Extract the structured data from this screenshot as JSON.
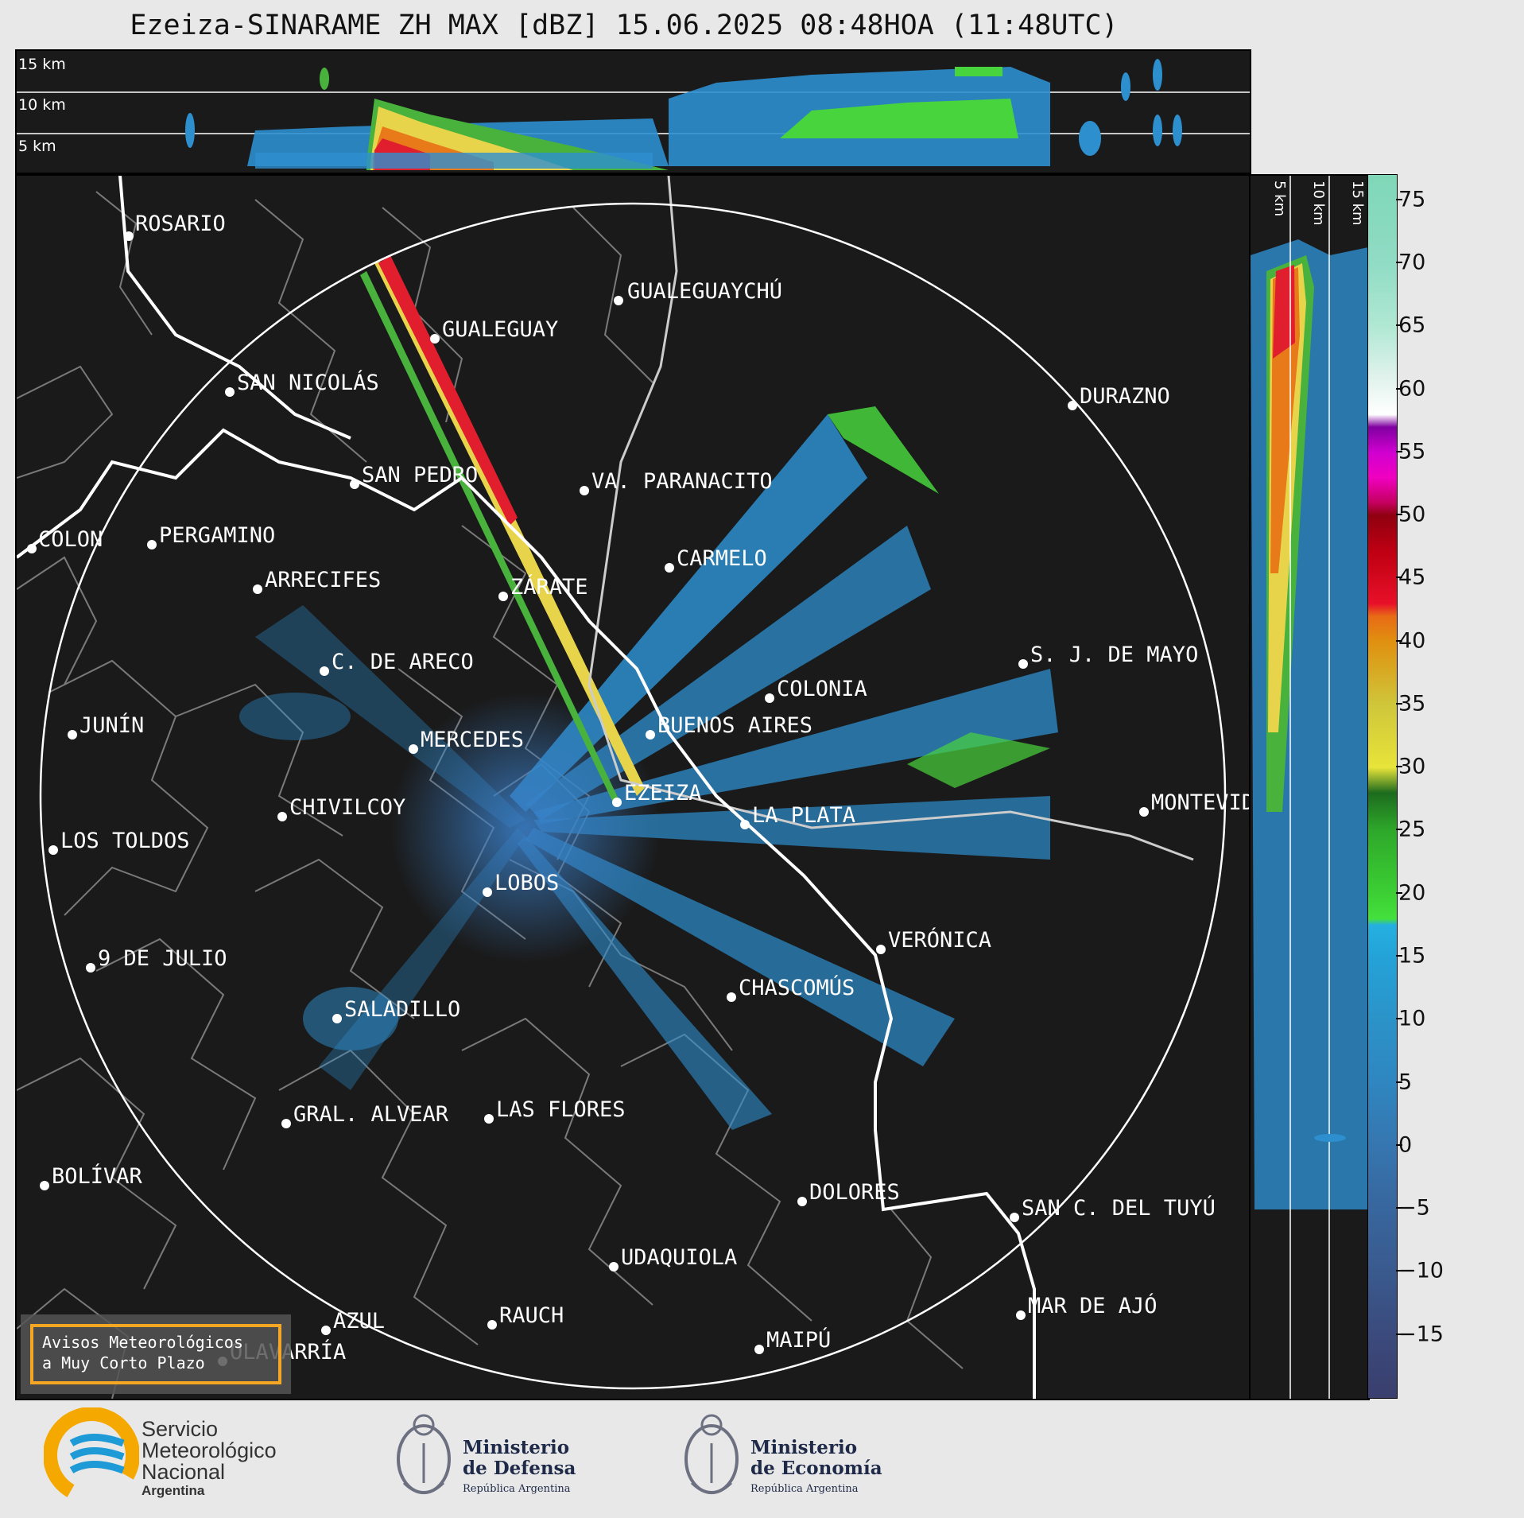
{
  "title": "Ezeiza-SINARAME ZH MAX [dBZ] 15.06.2025 08:48HOA (11:48UTC)",
  "top_panel": {
    "height_labels": [
      "15 km",
      "10 km",
      "5 km"
    ]
  },
  "side_panel": {
    "height_labels": [
      "5 km",
      "10 km",
      "15 km"
    ]
  },
  "colorbar": {
    "unit": "dBZ",
    "tick_labels": [
      "75",
      "70",
      "65",
      "60",
      "55",
      "50",
      "45",
      "40",
      "35",
      "30",
      "25",
      "20",
      "15",
      "10",
      "5",
      "0",
      "−5",
      "−10",
      "−15"
    ],
    "range": [
      -20,
      77
    ]
  },
  "cities": [
    {
      "name": "ROSARIO"
    },
    {
      "name": "GUALEGUAYCHÚ"
    },
    {
      "name": "GUALEGUAY"
    },
    {
      "name": "SAN NICOLÁS"
    },
    {
      "name": "DURAZNO"
    },
    {
      "name": "SAN PEDRO"
    },
    {
      "name": "VA. PARANACITO"
    },
    {
      "name": "COLON"
    },
    {
      "name": "PERGAMINO"
    },
    {
      "name": "CARMELO"
    },
    {
      "name": "ARRECIFES"
    },
    {
      "name": "ZÁRATE"
    },
    {
      "name": "S. J. DE MAYO"
    },
    {
      "name": "C. DE ARECO"
    },
    {
      "name": "COLONIA"
    },
    {
      "name": "JUNÍN"
    },
    {
      "name": "BUENOS AIRES"
    },
    {
      "name": "MERCEDES"
    },
    {
      "name": "EZEIZA"
    },
    {
      "name": "MONTEVIDEO"
    },
    {
      "name": "CHIVILCOY"
    },
    {
      "name": "LA PLATA"
    },
    {
      "name": "LOS TOLDOS"
    },
    {
      "name": "LOBOS"
    },
    {
      "name": "VERÓNICA"
    },
    {
      "name": "9 DE JULIO"
    },
    {
      "name": "CHASCOMÚS"
    },
    {
      "name": "SALADILLO"
    },
    {
      "name": "GRAL. ALVEAR"
    },
    {
      "name": "LAS FLORES"
    },
    {
      "name": "BOLÍVAR"
    },
    {
      "name": "DOLORES"
    },
    {
      "name": "SAN C. DEL TUYÚ"
    },
    {
      "name": "UDAQUIOLA"
    },
    {
      "name": "MAR DE AJÓ"
    },
    {
      "name": "AZUL"
    },
    {
      "name": "RAUCH"
    },
    {
      "name": "OLAVARRÍA"
    },
    {
      "name": "MAIPÚ"
    }
  ],
  "notice": {
    "line1": "Avisos Meteorológicos",
    "line2": "a Muy Corto Plazo",
    "border_color": "#f5a623"
  },
  "footer": {
    "smn": {
      "line1": "Servicio",
      "line2": "Meteorológico",
      "line3": "Nacional",
      "line4": "Argentina"
    },
    "defensa": {
      "line1": "Ministerio",
      "line2": "de Defensa",
      "line3": "República Argentina"
    },
    "economia": {
      "line1": "Ministerio",
      "line2": "de Economía",
      "line3": "República Argentina"
    }
  },
  "colors": {
    "background": "#1a1a1a",
    "boundary": "#ffffff",
    "district": "#7a7a7a",
    "smn_blue": "#1e9bd7",
    "smn_yellow": "#f5a800"
  }
}
